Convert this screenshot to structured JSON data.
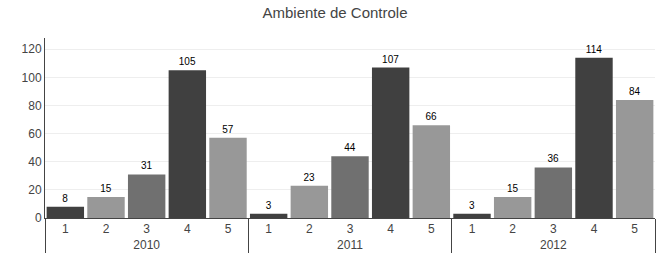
{
  "chart_data": {
    "type": "bar",
    "title": "Ambiente de Controle",
    "categories": [
      "1",
      "2",
      "3",
      "4",
      "5"
    ],
    "series": [
      {
        "name": "2010",
        "values": [
          8,
          15,
          31,
          105,
          57
        ],
        "colors": [
          "#404040",
          "#989898",
          "#707070",
          "#404040",
          "#989898"
        ]
      },
      {
        "name": "2011",
        "values": [
          3,
          23,
          44,
          107,
          66
        ],
        "colors": [
          "#404040",
          "#989898",
          "#707070",
          "#404040",
          "#989898"
        ]
      },
      {
        "name": "2012",
        "values": [
          3,
          15,
          36,
          114,
          84
        ],
        "colors": [
          "#404040",
          "#989898",
          "#707070",
          "#404040",
          "#989898"
        ]
      }
    ],
    "ylim": [
      0,
      128
    ],
    "yticks": [
      0,
      20,
      40,
      60,
      80,
      100,
      120
    ],
    "grid": true,
    "data_labels": true
  }
}
